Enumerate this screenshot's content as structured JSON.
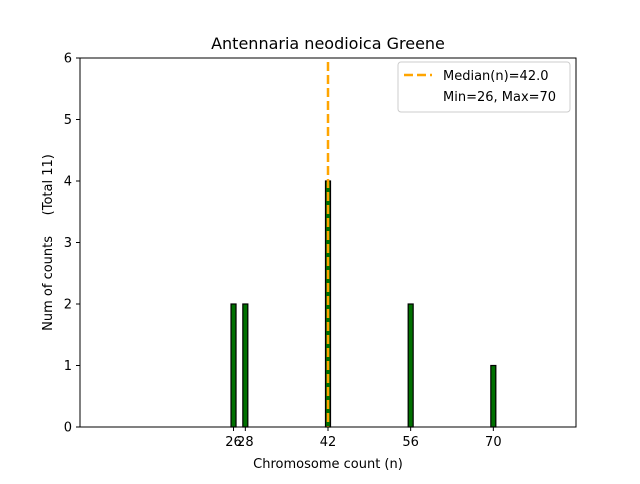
{
  "chart_data": {
    "type": "bar",
    "title": "Antennaria neodioica Greene",
    "xlabel": "Chromosome count (n)",
    "ylabel": "Num of counts     (Total 11)",
    "x_ticks": [
      26,
      28,
      42,
      56,
      70
    ],
    "y_ticks": [
      0,
      1,
      2,
      3,
      4,
      5,
      6
    ],
    "xlim": [
      0,
      84
    ],
    "ylim": [
      0,
      6
    ],
    "bars": [
      {
        "x": 26,
        "count": 2
      },
      {
        "x": 28,
        "count": 2
      },
      {
        "x": 42,
        "count": 4
      },
      {
        "x": 56,
        "count": 2
      },
      {
        "x": 70,
        "count": 1
      }
    ],
    "median": 42.0,
    "legend": {
      "placement": "top-right",
      "entries": [
        "Median(n)=42.0",
        "Min=26, Max=70"
      ]
    },
    "colors": {
      "bar_fill": "#007000",
      "bar_edge": "#000000",
      "median_line": "#FFA500"
    },
    "grid": false
  }
}
